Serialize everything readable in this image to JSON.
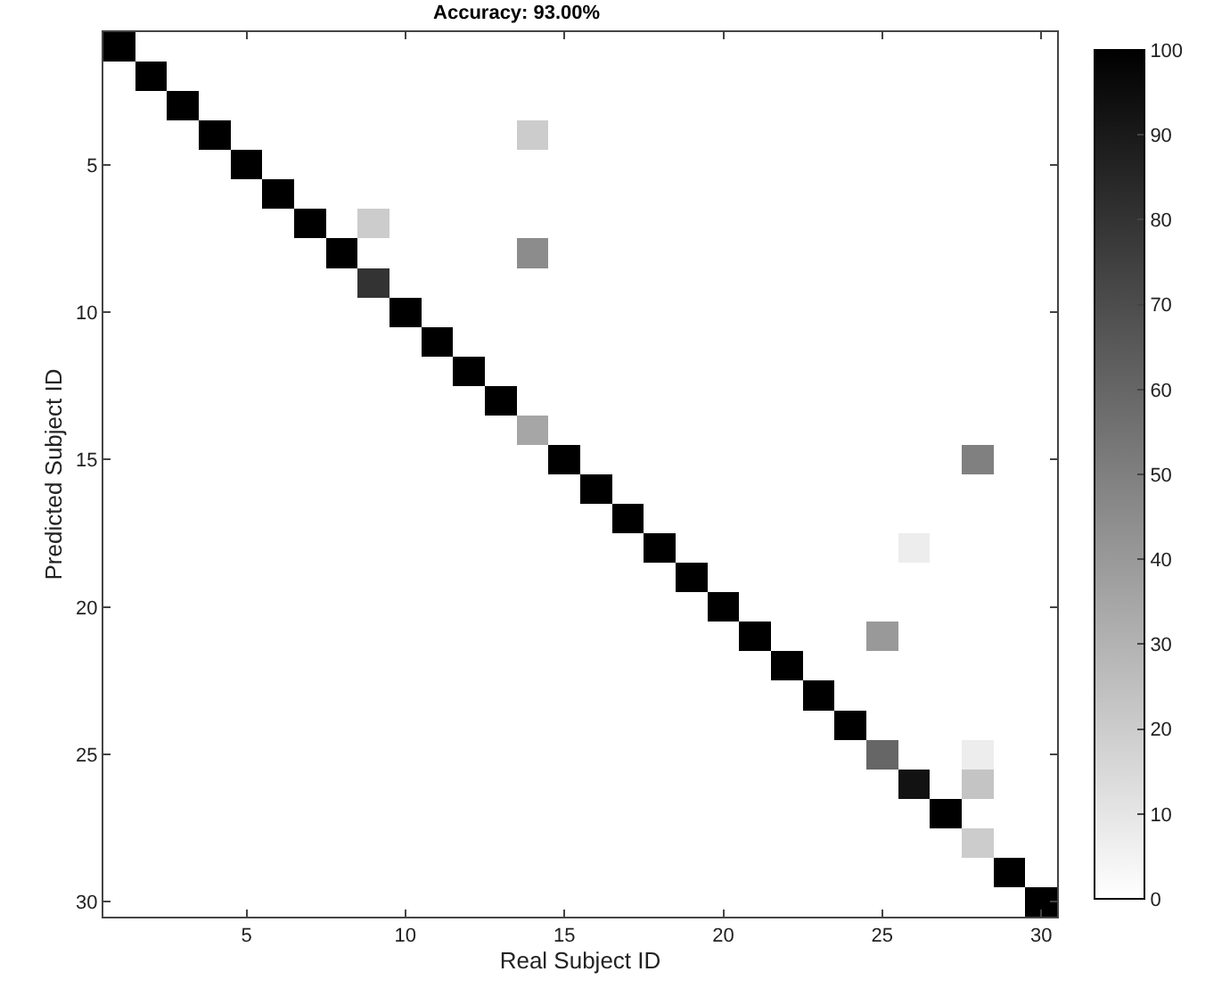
{
  "chart_data": {
    "type": "heatmap",
    "title": "Accuracy: 93.00%",
    "xlabel": "Real Subject ID",
    "ylabel": "Predicted Subject ID",
    "categories": [
      null,
      null,
      null,
      null,
      "5",
      null,
      null,
      null,
      null,
      "10",
      null,
      null,
      null,
      null,
      "15",
      null,
      null,
      null,
      null,
      "20",
      null,
      null,
      null,
      null,
      "25",
      null,
      null,
      null,
      null,
      "30"
    ],
    "y_categories": [
      null,
      null,
      null,
      null,
      "5",
      null,
      null,
      null,
      null,
      "10",
      null,
      null,
      null,
      null,
      "15",
      null,
      null,
      null,
      null,
      "20",
      null,
      null,
      null,
      null,
      "25",
      null,
      null,
      null,
      null,
      "30"
    ],
    "cells": [
      [
        100,
        0,
        0,
        0,
        0,
        0,
        0,
        0,
        0,
        0,
        0,
        0,
        0,
        0,
        0,
        0,
        0,
        0,
        0,
        0,
        0,
        0,
        0,
        0,
        0,
        0,
        0,
        0,
        0,
        0
      ],
      [
        0,
        100,
        0,
        0,
        0,
        0,
        0,
        0,
        0,
        0,
        0,
        0,
        0,
        0,
        0,
        0,
        0,
        0,
        0,
        0,
        0,
        0,
        0,
        0,
        0,
        0,
        0,
        0,
        0,
        0
      ],
      [
        0,
        0,
        100,
        0,
        0,
        0,
        0,
        0,
        0,
        0,
        0,
        0,
        0,
        0,
        0,
        0,
        0,
        0,
        0,
        0,
        0,
        0,
        0,
        0,
        0,
        0,
        0,
        0,
        0,
        0
      ],
      [
        0,
        0,
        0,
        100,
        0,
        0,
        0,
        0,
        0,
        0,
        0,
        0,
        0,
        20,
        0,
        0,
        0,
        0,
        0,
        0,
        0,
        0,
        0,
        0,
        0,
        0,
        0,
        0,
        0,
        0
      ],
      [
        0,
        0,
        0,
        0,
        100,
        0,
        0,
        0,
        0,
        0,
        0,
        0,
        0,
        0,
        0,
        0,
        0,
        0,
        0,
        0,
        0,
        0,
        0,
        0,
        0,
        0,
        0,
        0,
        0,
        0
      ],
      [
        0,
        0,
        0,
        0,
        0,
        100,
        0,
        0,
        0,
        0,
        0,
        0,
        0,
        0,
        0,
        0,
        0,
        0,
        0,
        0,
        0,
        0,
        0,
        0,
        0,
        0,
        0,
        0,
        0,
        0
      ],
      [
        0,
        0,
        0,
        0,
        0,
        0,
        100,
        0,
        20,
        0,
        0,
        0,
        0,
        0,
        0,
        0,
        0,
        0,
        0,
        0,
        0,
        0,
        0,
        0,
        0,
        0,
        0,
        0,
        0,
        0
      ],
      [
        0,
        0,
        0,
        0,
        0,
        0,
        0,
        100,
        0,
        0,
        0,
        0,
        0,
        45,
        0,
        0,
        0,
        0,
        0,
        0,
        0,
        0,
        0,
        0,
        0,
        0,
        0,
        0,
        0,
        0
      ],
      [
        0,
        0,
        0,
        0,
        0,
        0,
        0,
        0,
        80,
        0,
        0,
        0,
        0,
        0,
        0,
        0,
        0,
        0,
        0,
        0,
        0,
        0,
        0,
        0,
        0,
        0,
        0,
        0,
        0,
        0
      ],
      [
        0,
        0,
        0,
        0,
        0,
        0,
        0,
        0,
        0,
        100,
        0,
        0,
        0,
        0,
        0,
        0,
        0,
        0,
        0,
        0,
        0,
        0,
        0,
        0,
        0,
        0,
        0,
        0,
        0,
        0
      ],
      [
        0,
        0,
        0,
        0,
        0,
        0,
        0,
        0,
        0,
        0,
        100,
        0,
        0,
        0,
        0,
        0,
        0,
        0,
        0,
        0,
        0,
        0,
        0,
        0,
        0,
        0,
        0,
        0,
        0,
        0
      ],
      [
        0,
        0,
        0,
        0,
        0,
        0,
        0,
        0,
        0,
        0,
        0,
        100,
        0,
        0,
        0,
        0,
        0,
        0,
        0,
        0,
        0,
        0,
        0,
        0,
        0,
        0,
        0,
        0,
        0,
        0
      ],
      [
        0,
        0,
        0,
        0,
        0,
        0,
        0,
        0,
        0,
        0,
        0,
        0,
        100,
        0,
        0,
        0,
        0,
        0,
        0,
        0,
        0,
        0,
        0,
        0,
        0,
        0,
        0,
        0,
        0,
        0
      ],
      [
        0,
        0,
        0,
        0,
        0,
        0,
        0,
        0,
        0,
        0,
        0,
        0,
        0,
        35,
        0,
        0,
        0,
        0,
        0,
        0,
        0,
        0,
        0,
        0,
        0,
        0,
        0,
        0,
        0,
        0
      ],
      [
        0,
        0,
        0,
        0,
        0,
        0,
        0,
        0,
        0,
        0,
        0,
        0,
        0,
        0,
        100,
        0,
        0,
        0,
        0,
        0,
        0,
        0,
        0,
        0,
        0,
        0,
        0,
        50,
        0,
        0
      ],
      [
        0,
        0,
        0,
        0,
        0,
        0,
        0,
        0,
        0,
        0,
        0,
        0,
        0,
        0,
        0,
        100,
        0,
        0,
        0,
        0,
        0,
        0,
        0,
        0,
        0,
        0,
        0,
        0,
        0,
        0
      ],
      [
        0,
        0,
        0,
        0,
        0,
        0,
        0,
        0,
        0,
        0,
        0,
        0,
        0,
        0,
        0,
        0,
        100,
        0,
        0,
        0,
        0,
        0,
        0,
        0,
        0,
        0,
        0,
        0,
        0,
        0
      ],
      [
        0,
        0,
        0,
        0,
        0,
        0,
        0,
        0,
        0,
        0,
        0,
        0,
        0,
        0,
        0,
        0,
        0,
        100,
        0,
        0,
        0,
        0,
        0,
        0,
        0,
        7,
        0,
        0,
        0,
        0
      ],
      [
        0,
        0,
        0,
        0,
        0,
        0,
        0,
        0,
        0,
        0,
        0,
        0,
        0,
        0,
        0,
        0,
        0,
        0,
        100,
        0,
        0,
        0,
        0,
        0,
        0,
        0,
        0,
        0,
        0,
        0
      ],
      [
        0,
        0,
        0,
        0,
        0,
        0,
        0,
        0,
        0,
        0,
        0,
        0,
        0,
        0,
        0,
        0,
        0,
        0,
        0,
        100,
        0,
        0,
        0,
        0,
        0,
        0,
        0,
        0,
        0,
        0
      ],
      [
        0,
        0,
        0,
        0,
        0,
        0,
        0,
        0,
        0,
        0,
        0,
        0,
        0,
        0,
        0,
        0,
        0,
        0,
        0,
        0,
        100,
        0,
        0,
        0,
        40,
        0,
        0,
        0,
        0,
        0
      ],
      [
        0,
        0,
        0,
        0,
        0,
        0,
        0,
        0,
        0,
        0,
        0,
        0,
        0,
        0,
        0,
        0,
        0,
        0,
        0,
        0,
        0,
        100,
        0,
        0,
        0,
        0,
        0,
        0,
        0,
        0
      ],
      [
        0,
        0,
        0,
        0,
        0,
        0,
        0,
        0,
        0,
        0,
        0,
        0,
        0,
        0,
        0,
        0,
        0,
        0,
        0,
        0,
        0,
        0,
        100,
        0,
        0,
        0,
        0,
        0,
        0,
        0
      ],
      [
        0,
        0,
        0,
        0,
        0,
        0,
        0,
        0,
        0,
        0,
        0,
        0,
        0,
        0,
        0,
        0,
        0,
        0,
        0,
        0,
        0,
        0,
        0,
        100,
        0,
        0,
        0,
        0,
        0,
        0
      ],
      [
        0,
        0,
        0,
        0,
        0,
        0,
        0,
        0,
        0,
        0,
        0,
        0,
        0,
        0,
        0,
        0,
        0,
        0,
        0,
        0,
        0,
        0,
        0,
        0,
        60,
        0,
        0,
        7,
        0,
        0
      ],
      [
        0,
        0,
        0,
        0,
        0,
        0,
        0,
        0,
        0,
        0,
        0,
        0,
        0,
        0,
        0,
        0,
        0,
        0,
        0,
        0,
        0,
        0,
        0,
        0,
        0,
        93,
        0,
        23,
        0,
        0
      ],
      [
        0,
        0,
        0,
        0,
        0,
        0,
        0,
        0,
        0,
        0,
        0,
        0,
        0,
        0,
        0,
        0,
        0,
        0,
        0,
        0,
        0,
        0,
        0,
        0,
        0,
        0,
        100,
        0,
        0,
        0
      ],
      [
        0,
        0,
        0,
        0,
        0,
        0,
        0,
        0,
        0,
        0,
        0,
        0,
        0,
        0,
        0,
        0,
        0,
        0,
        0,
        0,
        0,
        0,
        0,
        0,
        0,
        0,
        0,
        20,
        0,
        0
      ],
      [
        0,
        0,
        0,
        0,
        0,
        0,
        0,
        0,
        0,
        0,
        0,
        0,
        0,
        0,
        0,
        0,
        0,
        0,
        0,
        0,
        0,
        0,
        0,
        0,
        0,
        0,
        0,
        0,
        100,
        0
      ],
      [
        0,
        0,
        0,
        0,
        0,
        0,
        0,
        0,
        0,
        0,
        0,
        0,
        0,
        0,
        0,
        0,
        0,
        0,
        0,
        0,
        0,
        0,
        0,
        0,
        0,
        0,
        0,
        0,
        0,
        100
      ]
    ],
    "clim": [
      0,
      100
    ],
    "cticks": [
      0,
      10,
      20,
      30,
      40,
      50,
      60,
      70,
      80,
      90,
      100
    ]
  }
}
